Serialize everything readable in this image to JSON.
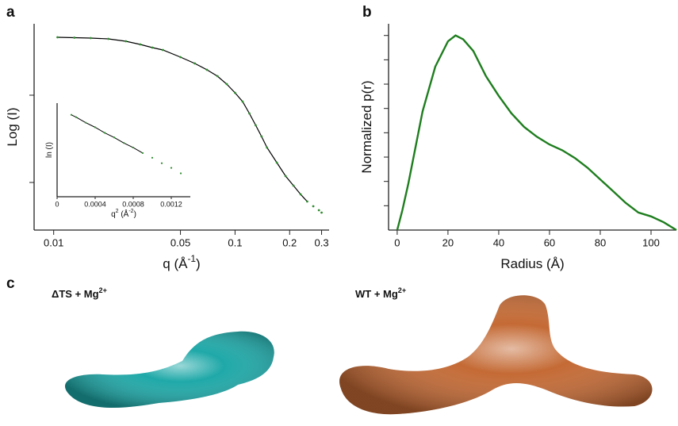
{
  "panel_labels": [
    "a",
    "b",
    "c"
  ],
  "chart_data": [
    {
      "type": "scatter",
      "xscale": "log",
      "xlabel": [
        "q (Å",
        "-1",
        ")"
      ],
      "ylabel": [
        "Log (I)"
      ],
      "xlim": [
        0.0078,
        0.33
      ],
      "xticks": [
        0.01,
        0.05,
        0.1,
        0.2,
        0.3
      ],
      "ylim": [
        -2.4,
        0.2
      ],
      "yticks": [
        -0.7,
        -1.8
      ],
      "y_tick_labels": false,
      "series": [
        {
          "style": "line",
          "color": "#000000",
          "x": [
            0.0105,
            0.013,
            0.016,
            0.02,
            0.025,
            0.03,
            0.035,
            0.04,
            0.05,
            0.06,
            0.07,
            0.08,
            0.09,
            0.1,
            0.11,
            0.12,
            0.13,
            0.14,
            0.15,
            0.17,
            0.19,
            0.21,
            0.23,
            0.25
          ],
          "values": [
            0.03,
            0.025,
            0.02,
            0.01,
            -0.02,
            -0.06,
            -0.1,
            -0.13,
            -0.22,
            -0.3,
            -0.38,
            -0.46,
            -0.56,
            -0.67,
            -0.78,
            -0.93,
            -1.08,
            -1.22,
            -1.36,
            -1.55,
            -1.72,
            -1.84,
            -1.95,
            -2.04
          ]
        },
        {
          "style": "points",
          "color": "#2e8b2e",
          "x": [
            0.0105,
            0.013,
            0.016,
            0.02,
            0.025,
            0.03,
            0.035,
            0.04,
            0.05,
            0.06,
            0.07,
            0.08,
            0.09,
            0.1,
            0.11,
            0.12,
            0.13,
            0.14,
            0.15,
            0.17,
            0.19,
            0.21,
            0.23,
            0.25,
            0.27,
            0.29,
            0.3
          ],
          "values": [
            0.03,
            0.025,
            0.02,
            0.01,
            -0.02,
            -0.06,
            -0.1,
            -0.13,
            -0.22,
            -0.3,
            -0.38,
            -0.46,
            -0.56,
            -0.67,
            -0.78,
            -0.93,
            -1.08,
            -1.22,
            -1.36,
            -1.55,
            -1.72,
            -1.84,
            -1.95,
            -2.04,
            -2.1,
            -2.15,
            -2.18
          ]
        }
      ],
      "inset": {
        "type": "scatter",
        "xlabel": [
          "q",
          "2",
          " (Å",
          "-2",
          ")"
        ],
        "ylabel": [
          "ln (I)"
        ],
        "xlim": [
          0,
          0.0014
        ],
        "xticks": [
          0,
          0.0004,
          0.0008,
          0.0012
        ],
        "ylim": [
          -1.2,
          0
        ],
        "yticks": [],
        "y_tick_labels": false,
        "series": [
          {
            "style": "line",
            "color": "#000000",
            "x": [
              0.00015,
              0.0002,
              0.0003,
              0.0004,
              0.0005,
              0.0006,
              0.0007,
              0.0008,
              0.0009
            ],
            "values": [
              -0.15,
              -0.18,
              -0.25,
              -0.31,
              -0.38,
              -0.44,
              -0.51,
              -0.57,
              -0.64
            ]
          },
          {
            "style": "points",
            "color": "#2e8b2e",
            "x": [
              0.00015,
              0.0002,
              0.0003,
              0.0004,
              0.0005,
              0.0006,
              0.0007,
              0.0008,
              0.0009,
              0.001,
              0.0011,
              0.0012,
              0.0013
            ],
            "values": [
              -0.15,
              -0.18,
              -0.25,
              -0.31,
              -0.38,
              -0.44,
              -0.51,
              -0.57,
              -0.64,
              -0.7,
              -0.77,
              -0.83,
              -0.9
            ]
          }
        ]
      }
    },
    {
      "type": "line",
      "xscale": "linear",
      "xlabel": [
        "Radius (Å)"
      ],
      "ylabel": [
        "Normalized p(r)"
      ],
      "xlim": [
        -3.4,
        110
      ],
      "xticks": [
        0,
        20,
        40,
        60,
        80,
        100
      ],
      "ylim": [
        0,
        1.06
      ],
      "yticks": [
        0.125,
        0.25,
        0.375,
        0.5,
        0.625,
        0.75,
        0.875,
        1.0
      ],
      "y_tick_labels": false,
      "series": [
        {
          "style": "line",
          "color": "#1e7d1e",
          "x": [
            0,
            2,
            4.4,
            10,
            15,
            20,
            23,
            26,
            30,
            35,
            40,
            45,
            50,
            55,
            60,
            65,
            70,
            75,
            80,
            85,
            90,
            95,
            100,
            105,
            110
          ],
          "values": [
            0,
            0.1,
            0.24,
            0.61,
            0.84,
            0.97,
            1.0,
            0.98,
            0.92,
            0.79,
            0.69,
            0.6,
            0.53,
            0.48,
            0.44,
            0.41,
            0.37,
            0.32,
            0.26,
            0.2,
            0.14,
            0.09,
            0.07,
            0.04,
            0.0
          ]
        }
      ]
    }
  ],
  "models": [
    {
      "label": [
        "ΔTS + Mg",
        "2+"
      ],
      "color": "#1fa8a8"
    },
    {
      "label": [
        "WT + Mg",
        "2+"
      ],
      "color": "#c46a35"
    }
  ]
}
